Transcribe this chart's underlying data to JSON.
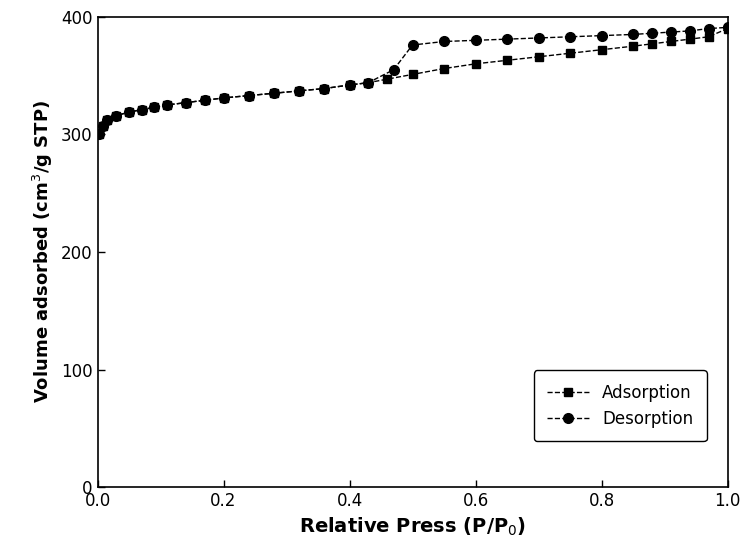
{
  "adsorption_x": [
    0.003,
    0.008,
    0.015,
    0.03,
    0.05,
    0.07,
    0.09,
    0.11,
    0.14,
    0.17,
    0.2,
    0.24,
    0.28,
    0.32,
    0.36,
    0.4,
    0.43,
    0.46,
    0.5,
    0.55,
    0.6,
    0.65,
    0.7,
    0.75,
    0.8,
    0.85,
    0.88,
    0.91,
    0.94,
    0.97,
    1.0
  ],
  "adsorption_y": [
    300,
    307,
    312,
    316,
    319,
    321,
    323,
    325,
    327,
    329,
    331,
    333,
    335,
    337,
    339,
    342,
    344,
    347,
    351,
    356,
    360,
    363,
    366,
    369,
    372,
    375,
    377,
    379,
    381,
    383,
    390
  ],
  "desorption_x": [
    0.003,
    0.008,
    0.015,
    0.03,
    0.05,
    0.07,
    0.09,
    0.11,
    0.14,
    0.17,
    0.2,
    0.24,
    0.28,
    0.32,
    0.36,
    0.4,
    0.43,
    0.47,
    0.5,
    0.55,
    0.6,
    0.65,
    0.7,
    0.75,
    0.8,
    0.85,
    0.88,
    0.91,
    0.94,
    0.97,
    1.0
  ],
  "desorption_y": [
    300,
    307,
    312,
    316,
    319,
    321,
    323,
    325,
    327,
    329,
    331,
    333,
    335,
    337,
    339,
    342,
    344,
    355,
    376,
    379,
    380,
    381,
    382,
    383,
    384,
    385,
    386,
    387,
    388,
    390,
    391
  ],
  "xlabel": "Relative Press (P/P$_0$)",
  "ylabel": "Volume adsorbed (cm$^3$/g STP)",
  "xlim": [
    0.0,
    1.0
  ],
  "ylim": [
    0,
    400
  ],
  "yticks": [
    0,
    100,
    200,
    300,
    400
  ],
  "xticks": [
    0.0,
    0.2,
    0.4,
    0.6,
    0.8,
    1.0
  ],
  "adsorption_label": "Adsorption",
  "desorption_label": "Desorption",
  "line_color": "#000000",
  "background_color": "#ffffff"
}
